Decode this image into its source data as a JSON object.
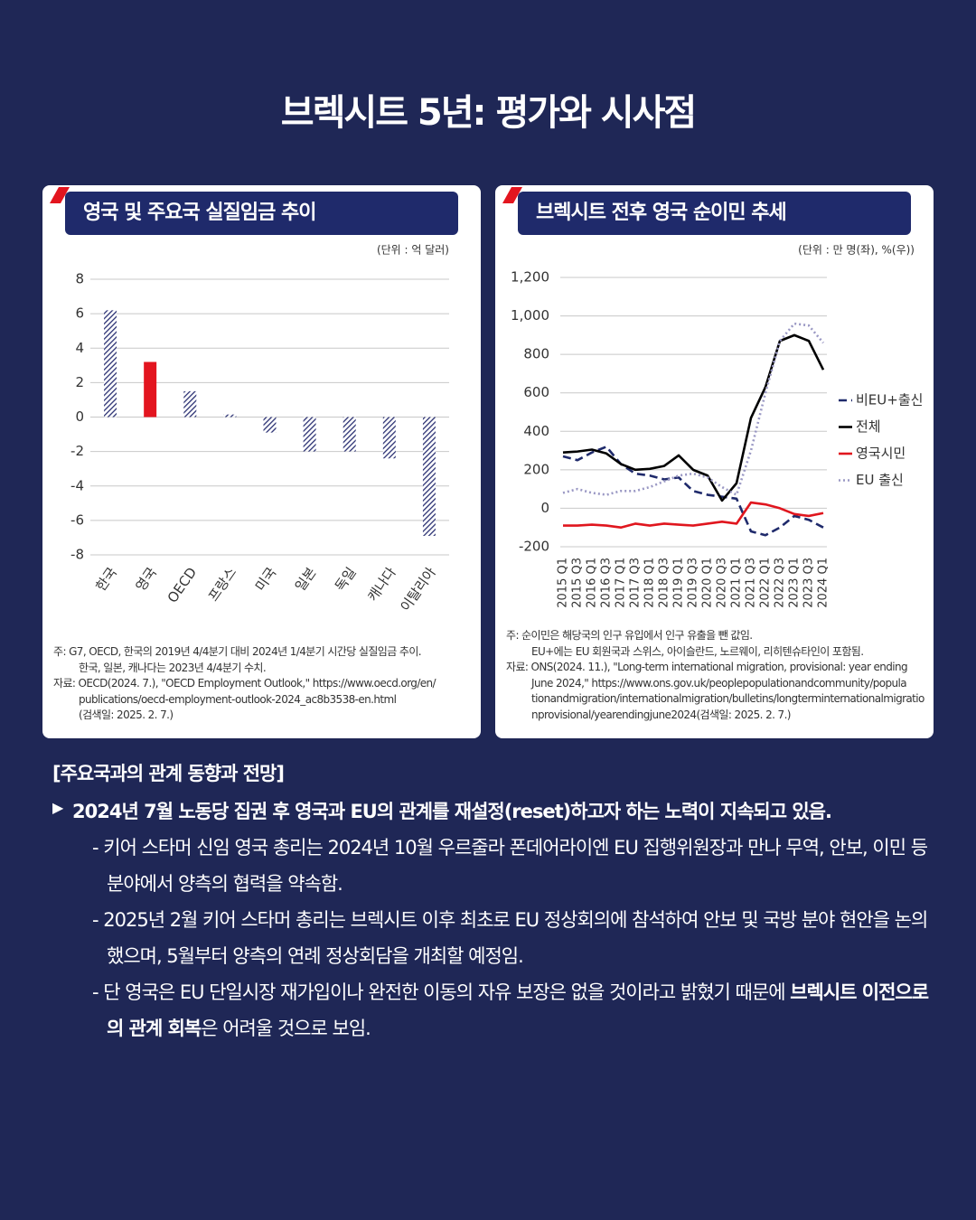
{
  "title": "브렉시트 5년: 평가와 시사점",
  "chart_data": [
    {
      "type": "bar",
      "title": "영국 및 주요국 실질임금 추이",
      "unit": "(단위 : 억 달러)",
      "categories": [
        "한국",
        "영국",
        "OECD",
        "프랑스",
        "미국",
        "일본",
        "독일",
        "캐나다",
        "이탈리아"
      ],
      "values": [
        6.2,
        3.2,
        1.5,
        0.15,
        -0.9,
        -2.0,
        -2.0,
        -2.4,
        -6.9
      ],
      "colors": [
        "#2b3173",
        "#e3151f",
        "#2b3173",
        "#2b3173",
        "#2b3173",
        "#2b3173",
        "#2b3173",
        "#2b3173",
        "#2b3173"
      ],
      "hatch": [
        true,
        false,
        true,
        true,
        true,
        true,
        true,
        true,
        true
      ],
      "ylim": [
        -8,
        8
      ],
      "yticks": [
        -8,
        -6,
        -4,
        -2,
        0,
        2,
        4,
        6,
        8
      ],
      "grid": true,
      "notes": [
        "주: G7, OECD, 한국의 2019년 4/4분기 대비 2024년 1/4분기 시간당 실질임금 추이.",
        "한국, 일본, 캐나다는 2023년 4/4분기 수치.",
        "자료: OECD(2024. 7.), \"OECD Employment Outlook,\" https://www.oecd.org/en/",
        "publications/oecd-employment-outlook-2024_ac8b3538-en.html",
        "(검색일: 2025. 2. 7.)"
      ]
    },
    {
      "type": "line",
      "title": "브렉시트 전후 영국 순이민 추세",
      "unit": "(단위 : 만 명(좌), %(우))",
      "categories": [
        "2015 Q1",
        "2015 Q3",
        "2016 Q1",
        "2016 Q3",
        "2017 Q1",
        "2017 Q3",
        "2018 Q1",
        "2018 Q3",
        "2019 Q1",
        "2019 Q3",
        "2020 Q1",
        "2020 Q3",
        "2021 Q1",
        "2021 Q3",
        "2022 Q1",
        "2022 Q3",
        "2023 Q1",
        "2023 Q3",
        "2024 Q1"
      ],
      "series": [
        {
          "name": "비EU+출신",
          "color": "#1f2a6b",
          "dash": "dashed",
          "values": [
            270,
            250,
            290,
            320,
            230,
            180,
            170,
            150,
            160,
            90,
            70,
            60,
            50,
            -120,
            -140,
            -100,
            -40,
            -60,
            -100
          ]
        },
        {
          "name": "전체",
          "color": "#000000",
          "dash": "solid",
          "values": [
            290,
            295,
            305,
            285,
            230,
            200,
            205,
            220,
            275,
            200,
            170,
            40,
            130,
            470,
            630,
            870,
            900,
            870,
            720
          ]
        },
        {
          "name": "영국시민",
          "color": "#e0161e",
          "dash": "solid",
          "values": [
            -90,
            -90,
            -85,
            -90,
            -100,
            -80,
            -90,
            -80,
            -85,
            -90,
            -80,
            -70,
            -80,
            30,
            20,
            0,
            -30,
            -40,
            -25
          ]
        },
        {
          "name": "EU 출신",
          "color": "#9a98c4",
          "dash": "dotted",
          "values": [
            80,
            100,
            80,
            70,
            90,
            90,
            110,
            140,
            170,
            180,
            160,
            110,
            70,
            300,
            600,
            870,
            960,
            950,
            860
          ]
        }
      ],
      "ylim": [
        -200,
        1200
      ],
      "yticks": [
        -200,
        0,
        200,
        400,
        600,
        800,
        {
          "value": 1000,
          "label": "1,000"
        },
        {
          "value": 1200,
          "label": "1,200"
        }
      ],
      "grid": true,
      "legend": "right",
      "notes": [
        "주: 순이민은 해당국의 인구 유입에서 인구 유출을 뺀 값임.",
        "EU+에는 EU 회원국과 스위스, 아이슬란드, 노르웨이, 리히텐슈타인이 포함됨.",
        "자료: ONS(2024. 11.), \"Long-term international migration, provisional: year ending",
        "June 2024,\" https://www.ons.gov.uk/peoplepopulationandcommunity/popula",
        "tionandmigration/internationalmigration/bulletins/longterminternationalmigratio",
        "nprovisional/yearendingjune2024(검색일: 2025. 2. 7.)"
      ]
    }
  ],
  "section": {
    "heading": "[주요국과의 관계 동향과 전망]",
    "bullet": "2024년 7월 노동당 집권 후 영국과 EU의 관계를 재설정(reset)하고자 하는 노력이 지속되고 있음.",
    "items": [
      {
        "parts": [
          "- 키어 스타머 신임 영국 총리는 2024년 10월 우르줄라 폰데어라이엔 EU 집행위원장과 만나 무역, 안보, 이민 등 분야에서 양측의 협력을 약속함."
        ]
      },
      {
        "parts": [
          "- 2025년 2월 키어 스타머 총리는 브렉시트 이후 최초로 EU 정상회의에 참석하여 안보 및 국방 분야 현안을 논의했으며, 5월부터 양측의 연례 정상회담을 개최할 예정임."
        ]
      },
      {
        "parts": [
          "- 단 영국은 EU 단일시장 재가입이나 완전한 이동의 자유 보장은 없을 것이라고 밝혔기 때문에 ",
          "브렉시트 이전으로의 관계 회복",
          "은 어려울 것으로 보임."
        ]
      }
    ]
  }
}
